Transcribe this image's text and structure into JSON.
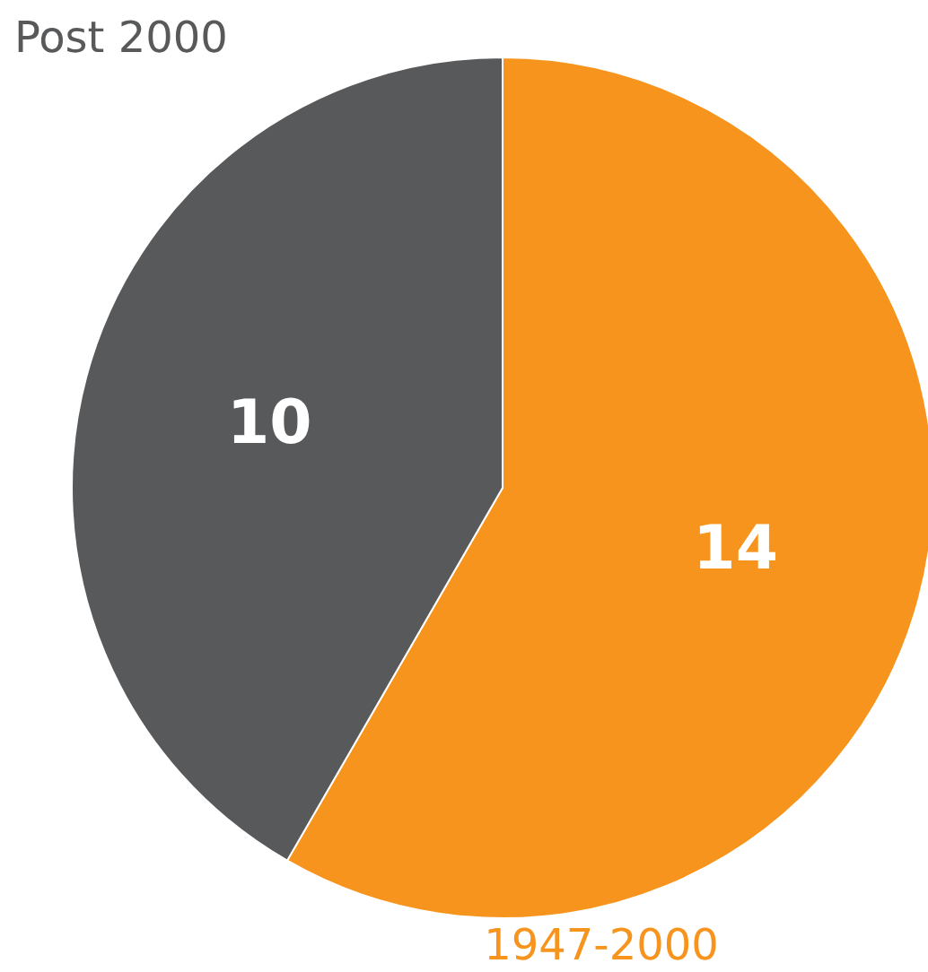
{
  "chart_data": {
    "type": "pie",
    "categories": [
      "1947-2000",
      "Post 2000"
    ],
    "values": [
      14,
      10
    ],
    "colors": [
      "#f7941d",
      "#58595b"
    ],
    "data_labels": true
  }
}
